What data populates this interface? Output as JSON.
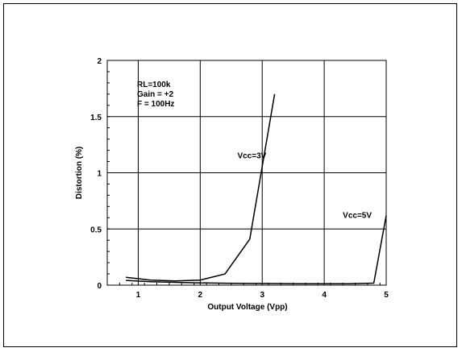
{
  "chart_data": {
    "type": "line",
    "title": "",
    "xlabel": "Output Voltage (Vpp)",
    "ylabel": "Distortion (%)",
    "xlim": [
      0.5,
      5
    ],
    "ylim": [
      0,
      2
    ],
    "x_ticks": [
      1,
      2,
      3,
      4,
      5
    ],
    "y_ticks": [
      0,
      0.5,
      1,
      1.5,
      2
    ],
    "x_tick_labels": [
      "1",
      "2",
      "3",
      "4",
      "5"
    ],
    "y_tick_labels": [
      "0",
      "0.5",
      "1",
      "1.5",
      "2"
    ],
    "grid": true,
    "line_color": "#000000",
    "conditions": [
      "RL=100k",
      "Gain = +2",
      "F = 100Hz"
    ],
    "series": [
      {
        "name": "Vcc=3V",
        "points": [
          [
            0.8,
            0.07
          ],
          [
            1.2,
            0.045
          ],
          [
            1.6,
            0.037
          ],
          [
            2.0,
            0.045
          ],
          [
            2.4,
            0.1
          ],
          [
            2.8,
            0.41
          ],
          [
            3.2,
            1.7
          ]
        ]
      },
      {
        "name": "Vcc=5V",
        "points": [
          [
            0.8,
            0.042
          ],
          [
            1.2,
            0.03
          ],
          [
            1.6,
            0.025
          ],
          [
            2.0,
            0.02
          ],
          [
            2.4,
            0.017
          ],
          [
            2.8,
            0.015
          ],
          [
            3.2,
            0.014
          ],
          [
            3.6,
            0.013
          ],
          [
            4.0,
            0.013
          ],
          [
            4.4,
            0.013
          ],
          [
            4.8,
            0.018
          ],
          [
            5.0,
            0.62
          ]
        ]
      }
    ],
    "series_labels": [
      {
        "text": "Vcc=3V",
        "x": 2.6,
        "y": 1.13
      },
      {
        "text": "Vcc=5V",
        "x": 4.3,
        "y": 0.6
      }
    ]
  }
}
